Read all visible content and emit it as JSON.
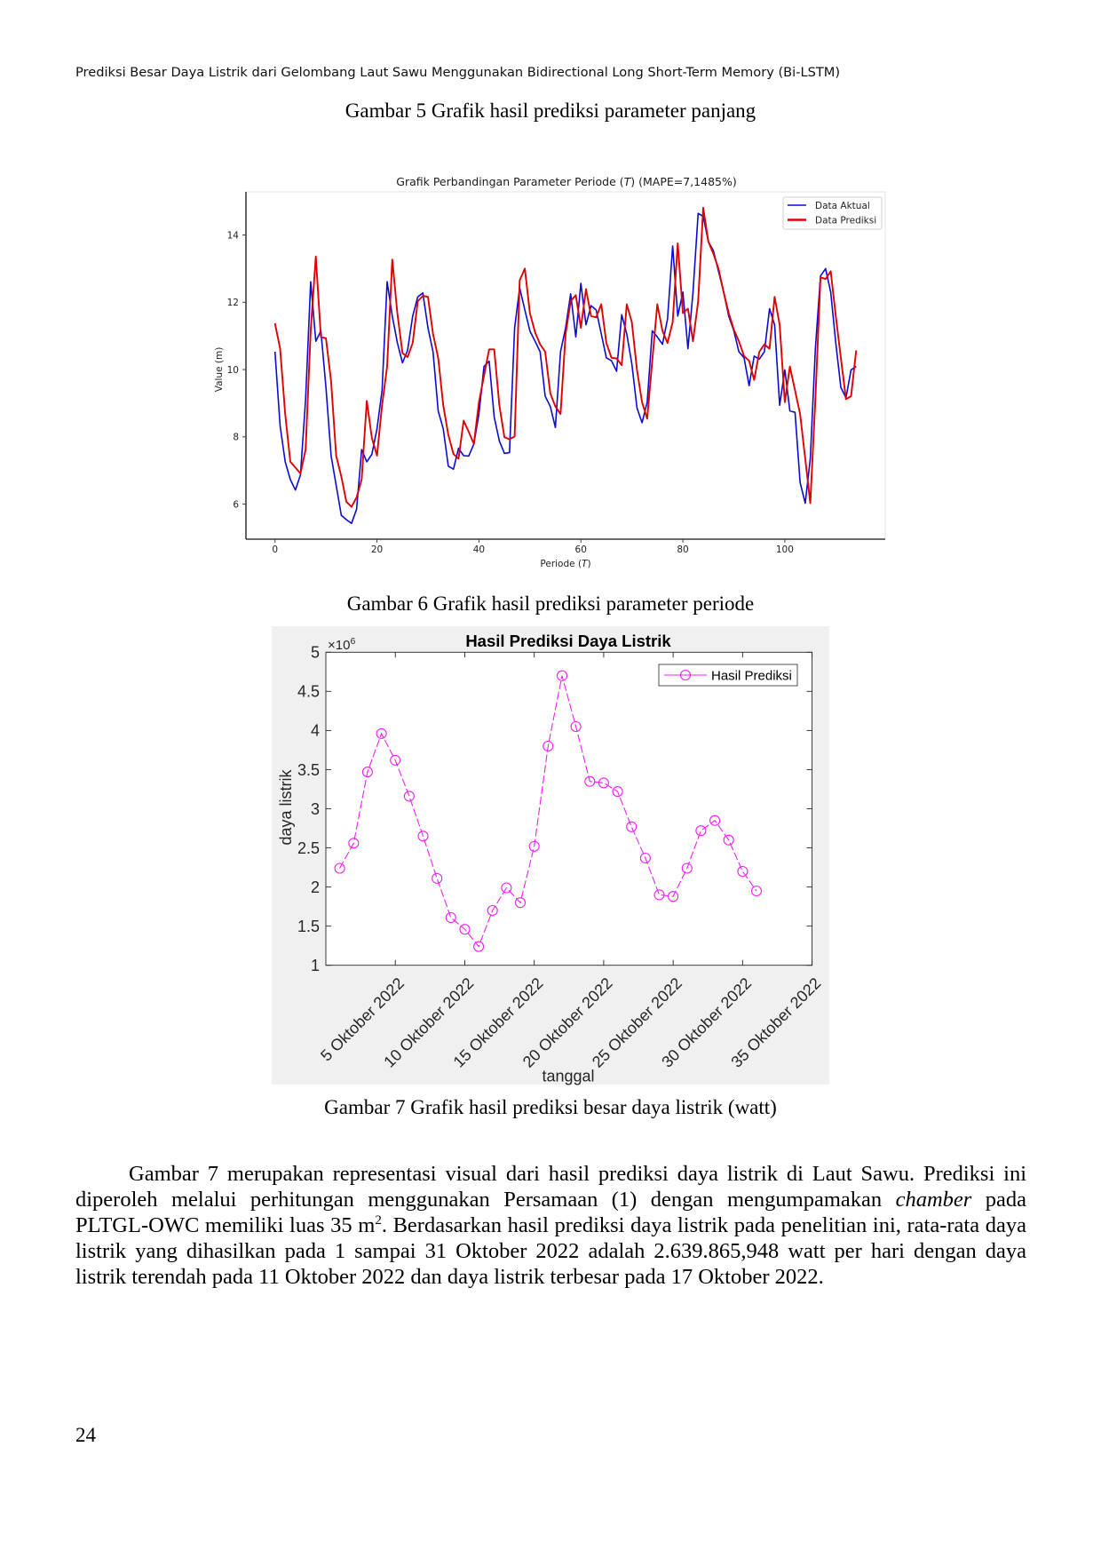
{
  "running_title": "Prediksi Besar Daya Listrik dari Gelombang Laut Sawu Menggunakan Bidirectional Long Short-Term Memory (Bi-LSTM)",
  "captions": {
    "gambar5": "Gambar 5 Grafik hasil prediksi parameter panjang",
    "gambar6": "Gambar 6 Grafik hasil prediksi parameter periode",
    "gambar7": "Gambar 7 Grafik hasil prediksi besar daya listrik (watt)"
  },
  "paragraph": {
    "line1": "Gambar 7 merupakan representasi visual dari hasil prediksi daya listrik di Laut Sawu. Prediksi ini",
    "line2_a": "diperoleh melalui perhitungan menggunakan Persamaan (1) dengan mengumpamakan ",
    "line2_italic": "chamber",
    "line2_b": " pada",
    "line3_a": "PLTGL-OWC memiliki luas 35 m",
    "line3_sup": "2",
    "line3_b": ". Berdasarkan hasil prediksi daya listrik pada penelitian ini, rata-rata daya",
    "line4": "listrik yang dihasilkan pada 1 sampai 31 Oktober 2022 adalah 2.639.865,948 watt per hari dengan daya",
    "line5": "listrik terendah pada 11 Oktober 2022 dan daya listrik terbesar pada 17 Oktober 2022."
  },
  "page_number": "24",
  "chart_data": [
    {
      "figure": "Gambar 6",
      "type": "line",
      "title": "Grafik Perbandingan Parameter Periode (T) (MAPE=7,1485%)",
      "title_parts": [
        "Grafik Perbandingan Parameter Periode (",
        "T",
        ") (MAPE=7,1485%)"
      ],
      "xlabel": "Periode (T)",
      "xlabel_parts": [
        "Periode (",
        "T",
        ")"
      ],
      "ylabel": "Value (m)",
      "xlim": [
        -5.7,
        119.7
      ],
      "ylim": [
        4.96,
        15.28
      ],
      "xticks": [
        0,
        20,
        40,
        60,
        80,
        100
      ],
      "yticks": [
        6,
        8,
        10,
        12,
        14
      ],
      "grid": false,
      "legend_position": "upper right",
      "x": [
        0,
        1,
        2,
        3,
        4,
        5,
        6,
        7,
        8,
        9,
        10,
        11,
        12,
        13,
        14,
        15,
        16,
        17,
        18,
        19,
        20,
        21,
        22,
        23,
        24,
        25,
        26,
        27,
        28,
        29,
        30,
        31,
        32,
        33,
        34,
        35,
        36,
        37,
        38,
        39,
        40,
        41,
        42,
        43,
        44,
        45,
        46,
        47,
        48,
        49,
        50,
        51,
        52,
        53,
        54,
        55,
        56,
        57,
        58,
        59,
        60,
        61,
        62,
        63,
        64,
        65,
        66,
        67,
        68,
        69,
        70,
        71,
        72,
        73,
        74,
        75,
        76,
        77,
        78,
        79,
        80,
        81,
        82,
        83,
        84,
        85,
        86,
        87,
        88,
        89,
        90,
        91,
        92,
        93,
        94,
        95,
        96,
        97,
        98,
        99,
        100,
        101,
        102,
        103,
        104,
        105,
        106,
        107,
        108,
        109,
        110,
        111,
        112,
        113,
        114
      ],
      "series": [
        {
          "name": "Data Aktual",
          "color": "#0b0bd4",
          "line_width": 1.6,
          "values": [
            10.53,
            8.32,
            7.26,
            6.73,
            6.42,
            6.87,
            9.12,
            12.61,
            10.84,
            11.15,
            9.47,
            7.44,
            6.56,
            5.67,
            5.54,
            5.43,
            5.85,
            7.62,
            7.26,
            7.48,
            8.24,
            9.38,
            12.61,
            11.59,
            10.8,
            10.2,
            10.57,
            11.59,
            12.16,
            12.28,
            11.24,
            10.53,
            8.77,
            8.24,
            7.13,
            7.04,
            7.66,
            7.44,
            7.43,
            7.79,
            8.68,
            10.09,
            10.25,
            8.59,
            7.88,
            7.51,
            7.53,
            11.24,
            12.43,
            11.77,
            11.15,
            10.84,
            10.53,
            9.21,
            8.9,
            8.28,
            10.53,
            11.24,
            12.25,
            10.97,
            12.56,
            11.33,
            11.9,
            11.77,
            11.06,
            10.35,
            10.26,
            9.95,
            11.63,
            11.06,
            10.17,
            8.86,
            8.42,
            9.03,
            11.15,
            10.97,
            10.75,
            11.5,
            13.67,
            11.59,
            12.3,
            10.62,
            12.3,
            14.64,
            14.55,
            13.8,
            13.53,
            12.92,
            12.3,
            11.59,
            11.15,
            10.53,
            10.35,
            9.52,
            10.4,
            10.31,
            10.53,
            11.81,
            11.33,
            8.94,
            9.99,
            8.77,
            8.73,
            6.65,
            6.03,
            7.35,
            10.62,
            12.78,
            13.0,
            12.3,
            10.79,
            9.47,
            9.16,
            9.99,
            10.09
          ]
        },
        {
          "name": "Data Prediksi",
          "color": "#e00000",
          "line_width": 1.9,
          "values": [
            11.37,
            10.62,
            8.68,
            7.26,
            7.09,
            6.91,
            7.62,
            11.15,
            13.36,
            10.97,
            10.93,
            9.65,
            7.44,
            6.82,
            6.07,
            5.92,
            6.2,
            6.73,
            9.07,
            7.97,
            7.44,
            8.94,
            10.09,
            13.27,
            11.68,
            10.49,
            10.37,
            10.79,
            12.03,
            12.19,
            12.16,
            11.06,
            10.35,
            8.94,
            8.06,
            7.49,
            7.35,
            8.48,
            8.15,
            7.79,
            9.03,
            9.82,
            10.6,
            10.6,
            8.94,
            7.99,
            7.93,
            8.01,
            12.65,
            13.0,
            11.68,
            11.11,
            10.75,
            10.53,
            9.29,
            8.9,
            8.68,
            11.06,
            12.03,
            12.21,
            11.24,
            12.39,
            11.59,
            11.55,
            11.94,
            10.79,
            10.35,
            10.33,
            10.13,
            11.94,
            11.41,
            9.99,
            9.03,
            8.54,
            10.26,
            11.94,
            11.15,
            10.79,
            11.41,
            13.75,
            11.68,
            11.81,
            10.84,
            12.03,
            14.81,
            13.8,
            13.44,
            13.0,
            12.3,
            11.68,
            11.19,
            10.84,
            10.4,
            10.26,
            9.69,
            10.53,
            10.75,
            10.62,
            12.16,
            11.33,
            9.03,
            10.09,
            9.38,
            8.68,
            7.35,
            6.03,
            9.12,
            12.74,
            12.69,
            12.92,
            11.59,
            10.35,
            9.12,
            9.21,
            10.57
          ]
        }
      ]
    },
    {
      "figure": "Gambar 7",
      "type": "line",
      "title": "Hasil Prediksi Daya Listrik",
      "xlabel": "tanggal",
      "ylabel": "daya listrik",
      "y_multiplier": {
        "base": "×10",
        "exponent": "6"
      },
      "xlim": [
        0,
        35
      ],
      "ylim": [
        1,
        5
      ],
      "xticks": [
        5,
        10,
        15,
        20,
        25,
        30,
        35
      ],
      "xtick_labels": [
        "5 Oktober 2022",
        "10 Oktober 2022",
        "15 Oktober 2022",
        "20 Oktober 2022",
        "25 Oktober 2022",
        "30 Oktober 2022",
        "35 Oktober 2022"
      ],
      "yticks": [
        1,
        1.5,
        2,
        2.5,
        3,
        3.5,
        4,
        4.5,
        5
      ],
      "ytick_labels": [
        "1",
        "1.5",
        "2",
        "2.5",
        "3",
        "3.5",
        "4",
        "4.5",
        "5"
      ],
      "grid": false,
      "legend_position": "upper right",
      "x": [
        1,
        2,
        3,
        4,
        5,
        6,
        7,
        8,
        9,
        10,
        11,
        12,
        13,
        14,
        15,
        16,
        17,
        18,
        19,
        20,
        21,
        22,
        23,
        24,
        25,
        26,
        27,
        28,
        29,
        30,
        31
      ],
      "series": [
        {
          "name": "Hasil Prediksi",
          "color": "#f01ff0",
          "line_style": "dashed",
          "marker": "circle",
          "values": [
            2.24,
            2.56,
            3.47,
            3.96,
            3.62,
            3.16,
            2.65,
            2.11,
            1.61,
            1.46,
            1.24,
            1.7,
            1.99,
            1.8,
            2.52,
            3.8,
            4.7,
            4.05,
            3.35,
            3.33,
            3.22,
            2.77,
            2.37,
            1.9,
            1.88,
            2.24,
            2.72,
            2.85,
            2.6,
            2.2,
            1.95
          ]
        }
      ]
    }
  ]
}
